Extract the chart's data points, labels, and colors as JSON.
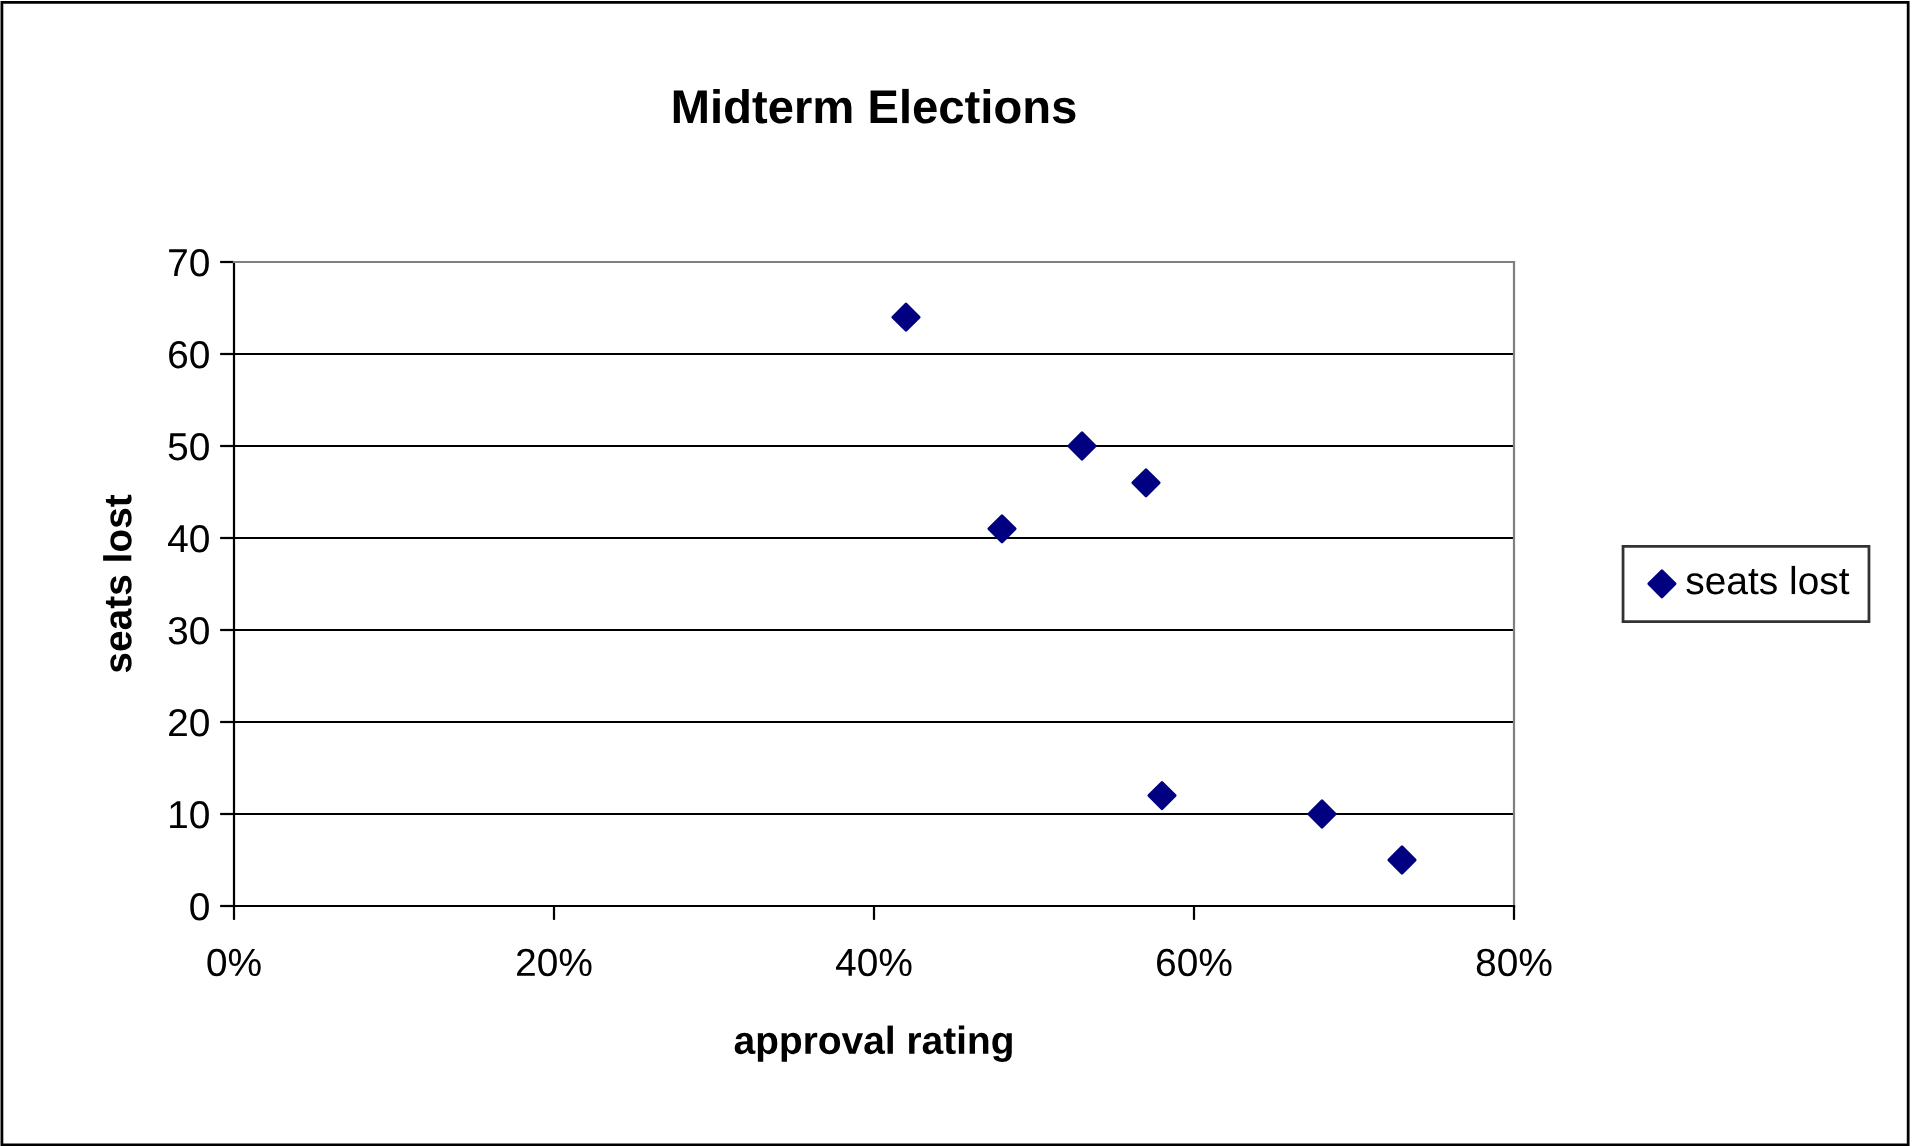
{
  "chart_data": {
    "type": "scatter",
    "title": "Midterm Elections",
    "xlabel": "approval rating",
    "ylabel": "seats lost",
    "x": [
      0.42,
      0.48,
      0.53,
      0.57,
      0.58,
      0.68,
      0.73
    ],
    "series": [
      {
        "name": "seats lost",
        "color": "#000080",
        "values": [
          64,
          41,
          50,
          46,
          12,
          10,
          5
        ]
      }
    ],
    "xlim": [
      0,
      0.8
    ],
    "xticks": [
      {
        "value": 0,
        "label": "0%"
      },
      {
        "value": 0.2,
        "label": "20%"
      },
      {
        "value": 0.4,
        "label": "40%"
      },
      {
        "value": 0.6,
        "label": "60%"
      },
      {
        "value": 0.8,
        "label": "80%"
      }
    ],
    "ylim": [
      0,
      70
    ],
    "yticks": [
      0,
      10,
      20,
      30,
      40,
      50,
      60,
      70
    ],
    "grid": "y",
    "legend": "right",
    "marker": "diamond"
  }
}
